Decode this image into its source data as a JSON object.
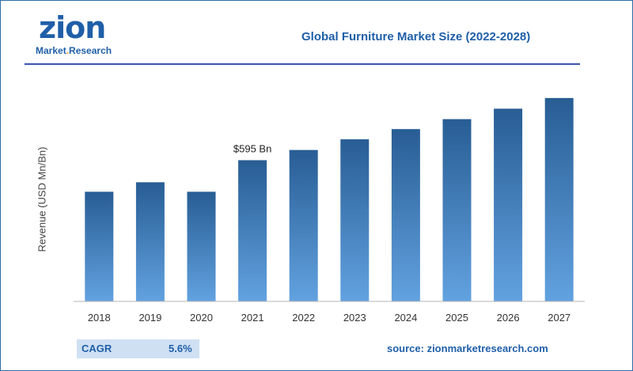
{
  "logo": {
    "word": "zion",
    "sub_left": "Market",
    "sub_dot": ".",
    "sub_right": "Research",
    "registered": "®"
  },
  "footer": {
    "cagr_label": "CAGR",
    "cagr_value": "5.6%",
    "source": "source: zionmarketresearch.com"
  },
  "colors": {
    "brand_blue": "#1f5fa8",
    "accent_orange": "#f29a1d",
    "bar_dark": "#2a5f97",
    "bar_light": "#5c9ad8"
  },
  "chart_data": {
    "type": "bar",
    "title": "Global Furniture Market Size (2022-2028)",
    "xlabel": "",
    "ylabel": "Revenue (USD Mn/Bn)",
    "categories": [
      "2018",
      "2019",
      "2020",
      "2021",
      "2022",
      "2023",
      "2024",
      "2025",
      "2026",
      "2027"
    ],
    "values": [
      462,
      502,
      462,
      595,
      638,
      683,
      726,
      768,
      812,
      857
    ],
    "annotations": [
      {
        "category": "2021",
        "text": "$595 Bn"
      }
    ],
    "ylim": [
      0,
      900
    ],
    "grid": false,
    "legend": "none"
  }
}
